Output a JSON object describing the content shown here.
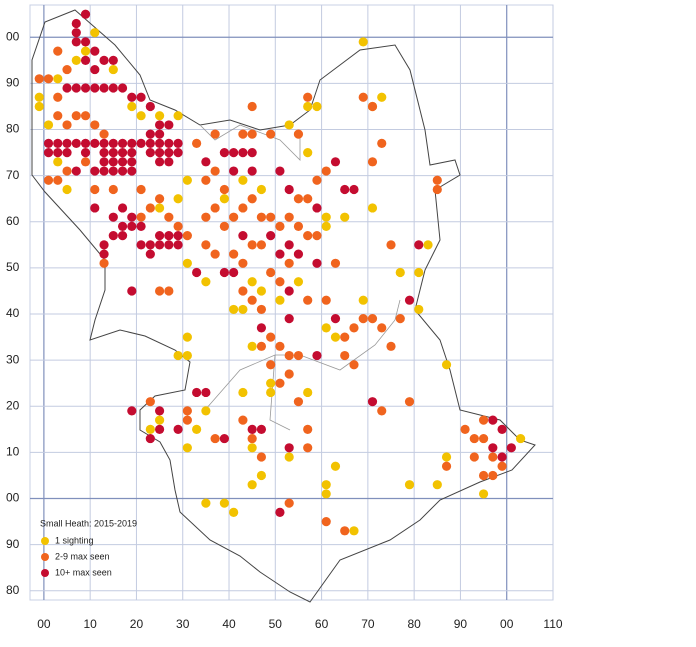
{
  "map": {
    "legend_title": "Small Heath:  2015-2019",
    "xlim": [
      -3,
      110
    ],
    "ylim": [
      -22,
      107
    ],
    "xticks": [
      {
        "value": 0,
        "label": "00"
      },
      10,
      20,
      30,
      40,
      50,
      60,
      70,
      80,
      90,
      {
        "value": 100,
        "label": "00"
      },
      110
    ],
    "yticks": [
      {
        "value": 100,
        "label": "00"
      },
      90,
      80,
      70,
      60,
      50,
      40,
      30,
      20,
      10,
      {
        "value": 0,
        "label": "00"
      },
      {
        "value": -10,
        "label": "90"
      },
      {
        "value": -20,
        "label": "80"
      }
    ],
    "major_ticks": [
      0,
      100
    ],
    "series": [
      {
        "name": "1 sighting",
        "color": "#f2c200",
        "points": [
          [
            -1,
            85
          ],
          [
            1,
            81
          ],
          [
            -1,
            87
          ],
          [
            3,
            91
          ],
          [
            9,
            97
          ],
          [
            11,
            101
          ],
          [
            7,
            95
          ],
          [
            15,
            93
          ],
          [
            19,
            85
          ],
          [
            21,
            83
          ],
          [
            25,
            83
          ],
          [
            29,
            83
          ],
          [
            3,
            73
          ],
          [
            5,
            67
          ],
          [
            25,
            63
          ],
          [
            29,
            65
          ],
          [
            31,
            69
          ],
          [
            31,
            51
          ],
          [
            31,
            31
          ],
          [
            29,
            31
          ],
          [
            31,
            35
          ],
          [
            35,
            47
          ],
          [
            35,
            19
          ],
          [
            33,
            15
          ],
          [
            41,
            41
          ],
          [
            43,
            41
          ],
          [
            45,
            47
          ],
          [
            47,
            45
          ],
          [
            45,
            33
          ],
          [
            49,
            25
          ],
          [
            49,
            23
          ],
          [
            47,
            5
          ],
          [
            45,
            3
          ],
          [
            53,
            9
          ],
          [
            41,
            -3
          ],
          [
            35,
            -1
          ],
          [
            39,
            -1
          ],
          [
            61,
            1
          ],
          [
            61,
            3
          ],
          [
            63,
            7
          ],
          [
            67,
            -7
          ],
          [
            57,
            23
          ],
          [
            61,
            37
          ],
          [
            63,
            35
          ],
          [
            69,
            43
          ],
          [
            71,
            63
          ],
          [
            69,
            99
          ],
          [
            71,
            85
          ],
          [
            73,
            87
          ],
          [
            77,
            49
          ],
          [
            81,
            49
          ],
          [
            83,
            55
          ],
          [
            81,
            41
          ],
          [
            87,
            29
          ],
          [
            87,
            9
          ],
          [
            85,
            3
          ],
          [
            79,
            3
          ],
          [
            95,
            1
          ],
          [
            103,
            13
          ],
          [
            51,
            43
          ],
          [
            55,
            47
          ],
          [
            43,
            23
          ],
          [
            45,
            11
          ],
          [
            25,
            17
          ],
          [
            23,
            15
          ],
          [
            31,
            11
          ],
          [
            61,
            61
          ],
          [
            61,
            59
          ],
          [
            53,
            81
          ],
          [
            57,
            75
          ],
          [
            43,
            69
          ],
          [
            39,
            65
          ],
          [
            47,
            67
          ],
          [
            57,
            85
          ],
          [
            59,
            85
          ],
          [
            65,
            61
          ]
        ]
      },
      {
        "name": "2-9 max seen",
        "color": "#f0641e",
        "points": [
          [
            -1,
            91
          ],
          [
            1,
            91
          ],
          [
            3,
            97
          ],
          [
            5,
            93
          ],
          [
            3,
            87
          ],
          [
            3,
            83
          ],
          [
            5,
            81
          ],
          [
            7,
            83
          ],
          [
            9,
            83
          ],
          [
            11,
            81
          ],
          [
            13,
            79
          ],
          [
            5,
            71
          ],
          [
            3,
            69
          ],
          [
            1,
            69
          ],
          [
            9,
            73
          ],
          [
            11,
            67
          ],
          [
            21,
            67
          ],
          [
            15,
            67
          ],
          [
            23,
            63
          ],
          [
            25,
            65
          ],
          [
            21,
            61
          ],
          [
            13,
            51
          ],
          [
            27,
            61
          ],
          [
            29,
            59
          ],
          [
            31,
            57
          ],
          [
            35,
            61
          ],
          [
            37,
            63
          ],
          [
            35,
            69
          ],
          [
            37,
            71
          ],
          [
            39,
            67
          ],
          [
            39,
            59
          ],
          [
            41,
            61
          ],
          [
            43,
            63
          ],
          [
            45,
            65
          ],
          [
            47,
            61
          ],
          [
            49,
            61
          ],
          [
            51,
            59
          ],
          [
            53,
            61
          ],
          [
            55,
            65
          ],
          [
            57,
            65
          ],
          [
            59,
            69
          ],
          [
            61,
            71
          ],
          [
            55,
            79
          ],
          [
            57,
            87
          ],
          [
            49,
            79
          ],
          [
            45,
            79
          ],
          [
            43,
            79
          ],
          [
            37,
            79
          ],
          [
            33,
            77
          ],
          [
            35,
            55
          ],
          [
            37,
            53
          ],
          [
            41,
            53
          ],
          [
            43,
            51
          ],
          [
            45,
            55
          ],
          [
            47,
            55
          ],
          [
            49,
            49
          ],
          [
            51,
            47
          ],
          [
            53,
            51
          ],
          [
            55,
            59
          ],
          [
            57,
            57
          ],
          [
            59,
            57
          ],
          [
            63,
            51
          ],
          [
            47,
            41
          ],
          [
            45,
            43
          ],
          [
            43,
            45
          ],
          [
            49,
            29
          ],
          [
            51,
            25
          ],
          [
            53,
            27
          ],
          [
            55,
            21
          ],
          [
            47,
            33
          ],
          [
            49,
            35
          ],
          [
            51,
            33
          ],
          [
            53,
            31
          ],
          [
            55,
            31
          ],
          [
            57,
            43
          ],
          [
            61,
            43
          ],
          [
            65,
            35
          ],
          [
            67,
            37
          ],
          [
            65,
            31
          ],
          [
            67,
            29
          ],
          [
            69,
            39
          ],
          [
            71,
            39
          ],
          [
            73,
            37
          ],
          [
            75,
            33
          ],
          [
            77,
            39
          ],
          [
            79,
            21
          ],
          [
            73,
            19
          ],
          [
            71,
            85
          ],
          [
            69,
            87
          ],
          [
            73,
            77
          ],
          [
            71,
            73
          ],
          [
            75,
            55
          ],
          [
            85,
            69
          ],
          [
            85,
            67
          ],
          [
            31,
            19
          ],
          [
            31,
            17
          ],
          [
            37,
            13
          ],
          [
            43,
            17
          ],
          [
            45,
            13
          ],
          [
            47,
            9
          ],
          [
            57,
            15
          ],
          [
            57,
            11
          ],
          [
            53,
            -1
          ],
          [
            61,
            -5
          ],
          [
            65,
            -7
          ],
          [
            95,
            17
          ],
          [
            93,
            13
          ],
          [
            95,
            13
          ],
          [
            97,
            9
          ],
          [
            99,
            7
          ],
          [
            97,
            5
          ],
          [
            95,
            5
          ],
          [
            93,
            9
          ],
          [
            87,
            7
          ],
          [
            91,
            15
          ],
          [
            23,
            21
          ],
          [
            45,
            85
          ],
          [
            27,
            45
          ],
          [
            25,
            45
          ]
        ]
      },
      {
        "name": "10+ max seen",
        "color": "#c40c30",
        "points": [
          [
            7,
            103
          ],
          [
            9,
            105
          ],
          [
            7,
            101
          ],
          [
            7,
            99
          ],
          [
            9,
            99
          ],
          [
            11,
            97
          ],
          [
            13,
            95
          ],
          [
            15,
            95
          ],
          [
            9,
            95
          ],
          [
            11,
            93
          ],
          [
            5,
            89
          ],
          [
            7,
            89
          ],
          [
            9,
            89
          ],
          [
            11,
            89
          ],
          [
            13,
            89
          ],
          [
            15,
            89
          ],
          [
            17,
            89
          ],
          [
            19,
            87
          ],
          [
            21,
            87
          ],
          [
            23,
            85
          ],
          [
            1,
            77
          ],
          [
            3,
            77
          ],
          [
            5,
            77
          ],
          [
            7,
            77
          ],
          [
            9,
            77
          ],
          [
            11,
            77
          ],
          [
            13,
            77
          ],
          [
            15,
            77
          ],
          [
            17,
            77
          ],
          [
            19,
            77
          ],
          [
            21,
            77
          ],
          [
            23,
            77
          ],
          [
            25,
            77
          ],
          [
            27,
            77
          ],
          [
            29,
            77
          ],
          [
            1,
            75
          ],
          [
            3,
            75
          ],
          [
            5,
            75
          ],
          [
            9,
            75
          ],
          [
            13,
            75
          ],
          [
            15,
            75
          ],
          [
            17,
            75
          ],
          [
            19,
            75
          ],
          [
            23,
            75
          ],
          [
            25,
            75
          ],
          [
            27,
            75
          ],
          [
            29,
            75
          ],
          [
            13,
            73
          ],
          [
            15,
            73
          ],
          [
            17,
            73
          ],
          [
            19,
            73
          ],
          [
            25,
            73
          ],
          [
            27,
            73
          ],
          [
            7,
            71
          ],
          [
            11,
            71
          ],
          [
            13,
            71
          ],
          [
            15,
            71
          ],
          [
            17,
            71
          ],
          [
            19,
            71
          ],
          [
            25,
            79
          ],
          [
            25,
            81
          ],
          [
            27,
            81
          ],
          [
            23,
            79
          ],
          [
            17,
            63
          ],
          [
            19,
            61
          ],
          [
            15,
            61
          ],
          [
            17,
            59
          ],
          [
            19,
            59
          ],
          [
            21,
            59
          ],
          [
            15,
            57
          ],
          [
            17,
            57
          ],
          [
            21,
            55
          ],
          [
            23,
            55
          ],
          [
            25,
            55
          ],
          [
            27,
            55
          ],
          [
            29,
            55
          ],
          [
            25,
            57
          ],
          [
            27,
            57
          ],
          [
            29,
            57
          ],
          [
            13,
            55
          ],
          [
            13,
            53
          ],
          [
            23,
            53
          ],
          [
            11,
            63
          ],
          [
            35,
            73
          ],
          [
            39,
            75
          ],
          [
            41,
            75
          ],
          [
            43,
            75
          ],
          [
            45,
            75
          ],
          [
            41,
            71
          ],
          [
            45,
            71
          ],
          [
            51,
            71
          ],
          [
            53,
            67
          ],
          [
            49,
            57
          ],
          [
            43,
            57
          ],
          [
            53,
            55
          ],
          [
            51,
            53
          ],
          [
            55,
            53
          ],
          [
            59,
            51
          ],
          [
            59,
            63
          ],
          [
            63,
            73
          ],
          [
            65,
            67
          ],
          [
            67,
            67
          ],
          [
            39,
            49
          ],
          [
            41,
            49
          ],
          [
            33,
            49
          ],
          [
            53,
            45
          ],
          [
            63,
            39
          ],
          [
            53,
            39
          ],
          [
            47,
            37
          ],
          [
            79,
            43
          ],
          [
            81,
            55
          ],
          [
            71,
            21
          ],
          [
            19,
            45
          ],
          [
            19,
            19
          ],
          [
            25,
            15
          ],
          [
            29,
            15
          ],
          [
            33,
            23
          ],
          [
            35,
            23
          ],
          [
            39,
            13
          ],
          [
            45,
            15
          ],
          [
            47,
            15
          ],
          [
            53,
            11
          ],
          [
            51,
            -3
          ],
          [
            97,
            17
          ],
          [
            99,
            15
          ],
          [
            97,
            11
          ],
          [
            101,
            11
          ],
          [
            99,
            9
          ],
          [
            25,
            19
          ],
          [
            23,
            13
          ],
          [
            59,
            31
          ]
        ]
      }
    ]
  }
}
